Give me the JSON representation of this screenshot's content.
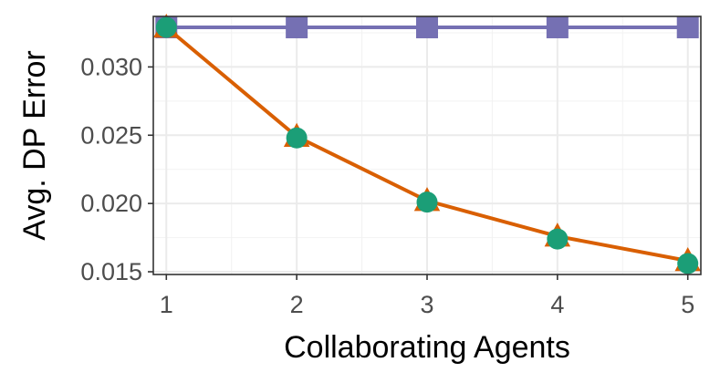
{
  "chart_data": {
    "type": "line",
    "title": "",
    "xlabel": "Collaborating Agents",
    "ylabel": "Avg. DP Error",
    "x": [
      1,
      2,
      3,
      4,
      5
    ],
    "xlim": [
      0.9,
      5.1
    ],
    "ylim": [
      0.0148,
      0.0337
    ],
    "x_ticks": [
      "1",
      "2",
      "3",
      "4",
      "5"
    ],
    "y_ticks": [
      "0.015",
      "0.020",
      "0.025",
      "0.030"
    ],
    "y_tick_values": [
      0.015,
      0.02,
      0.025,
      0.03
    ],
    "grid": true,
    "legend": "none",
    "series": [
      {
        "values": [
          0.0329,
          0.0329,
          0.0329,
          0.0329,
          0.0329
        ],
        "color": "#7570b3",
        "marker": "square",
        "line": true
      },
      {
        "values": [
          0.0329,
          0.0249,
          0.0202,
          0.0176,
          0.0158
        ],
        "color": "#d95f02",
        "marker": "triangle",
        "line": true
      },
      {
        "values": [
          0.0329,
          0.0248,
          0.0201,
          0.0174,
          0.0156
        ],
        "color": "#1b9e77",
        "marker": "circle",
        "line": false
      }
    ]
  }
}
